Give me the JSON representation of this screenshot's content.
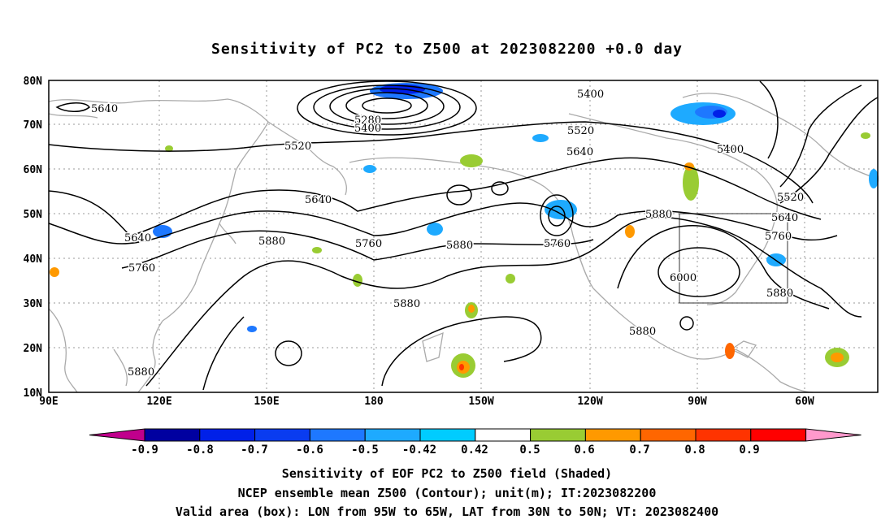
{
  "title": "Sensitivity of PC2 to Z500 at 2023082200 +0.0 day",
  "map": {
    "lon_labels": [
      "90E",
      "120E",
      "150E",
      "180",
      "150W",
      "120W",
      "90W",
      "60W"
    ],
    "lat_labels": [
      "80N",
      "70N",
      "60N",
      "50N",
      "40N",
      "30N",
      "20N",
      "10N"
    ],
    "contour_labels": [
      {
        "text": "5640",
        "id": "c1"
      },
      {
        "text": "5520",
        "id": "c2"
      },
      {
        "text": "5640",
        "id": "c3"
      },
      {
        "text": "5640",
        "id": "c4"
      },
      {
        "text": "5760",
        "id": "c5"
      },
      {
        "text": "5880",
        "id": "c6"
      },
      {
        "text": "5280",
        "id": "c7"
      },
      {
        "text": "5400",
        "id": "c8"
      },
      {
        "text": "5760",
        "id": "c9"
      },
      {
        "text": "5880",
        "id": "c10"
      },
      {
        "text": "5880",
        "id": "c11"
      },
      {
        "text": "5760",
        "id": "c12"
      },
      {
        "text": "5400",
        "id": "c13"
      },
      {
        "text": "5520",
        "id": "c14"
      },
      {
        "text": "5640",
        "id": "c15"
      },
      {
        "text": "5400",
        "id": "c16"
      },
      {
        "text": "5520",
        "id": "c17"
      },
      {
        "text": "5640",
        "id": "c18"
      },
      {
        "text": "5760",
        "id": "c19"
      },
      {
        "text": "5880",
        "id": "c20"
      },
      {
        "text": "6000",
        "id": "c21"
      },
      {
        "text": "5880",
        "id": "c22"
      },
      {
        "text": "5880",
        "id": "c23"
      },
      {
        "text": "5880",
        "id": "c24"
      }
    ],
    "valid_box": {
      "lon_min_deg_w": 95,
      "lon_max_deg_w": 65,
      "lat_min": 30,
      "lat_max": 50
    }
  },
  "colorbar": {
    "labels": [
      "-0.9",
      "-0.8",
      "-0.7",
      "-0.6",
      "-0.5",
      "-0.42",
      "0.42",
      "0.5",
      "0.6",
      "0.7",
      "0.8",
      "0.9"
    ],
    "colors": [
      "#c0008c",
      "#0000a0",
      "#0020e8",
      "#0a3cf0",
      "#1e78ff",
      "#1eaaff",
      "#00ccff",
      "#ffffff",
      "#99cc33",
      "#ff9900",
      "#ff6600",
      "#ff3300",
      "#ff0000",
      "#ff99cc"
    ]
  },
  "caption": {
    "line1": "Sensitivity of EOF PC2 to Z500 field (Shaded)",
    "line2": "NCEP ensemble mean Z500 (Contour); unit(m); IT:2023082200",
    "line3": "Valid area (box): LON from 95W to 65W, LAT from 30N to 50N; VT: 2023082400"
  }
}
